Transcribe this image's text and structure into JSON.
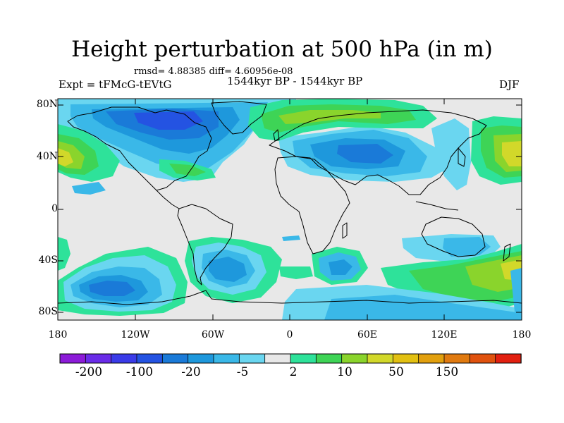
{
  "header": {
    "title": "Height perturbation at 500 hPa (in m)",
    "stats": "rmsd= 4.88385 diff= 4.60956e-08",
    "expt": "Expt = tFMcG-tEVtG",
    "period": "1544kyr BP - 1544kyr BP",
    "season": "DJF"
  },
  "axes": {
    "lat_labels": [
      "80N",
      "40N",
      "0",
      "40S",
      "80S"
    ],
    "lon_labels": [
      "180",
      "120W",
      "60W",
      "0",
      "60E",
      "120E",
      "180"
    ]
  },
  "colorbar": {
    "labels": [
      "-200",
      "-100",
      "-20",
      "-5",
      "2",
      "10",
      "50",
      "150"
    ],
    "colors": [
      "#8c1bd8",
      "#6a2ce8",
      "#3a3be8",
      "#2453e2",
      "#1a7ad8",
      "#1e98dc",
      "#3ab8e8",
      "#6ad6f0",
      "#e8e8e8",
      "#2ee29a",
      "#3ed456",
      "#8ad42c",
      "#d2d82a",
      "#e2c012",
      "#e2a00e",
      "#e07a10",
      "#e0520e",
      "#e22010"
    ]
  },
  "map": {
    "background_color": "#e8e8e8",
    "coastline_color": "#000000"
  }
}
